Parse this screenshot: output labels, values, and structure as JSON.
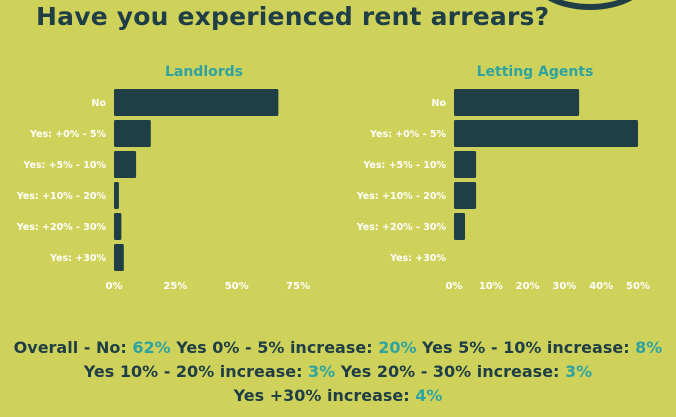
{
  "title": "Have you experienced rent arrears?",
  "chart_data": [
    {
      "type": "bar",
      "orientation": "horizontal",
      "title": "Landlords",
      "categories": [
        "No",
        "Yes: +0% - 5%",
        "Yes: +5% - 10%",
        "Yes: +10% - 20%",
        "Yes: +20% - 30%",
        "Yes: +30%"
      ],
      "values": [
        67,
        15,
        9,
        2,
        3,
        4
      ],
      "xlim": [
        0,
        75
      ],
      "xticks": [
        0,
        25,
        50,
        75
      ],
      "tick_labels": [
        "0%",
        "25%",
        "50%",
        "75%"
      ],
      "color": "#1f3e45"
    },
    {
      "type": "bar",
      "orientation": "horizontal",
      "title": "Letting Agents",
      "categories": [
        "No",
        "Yes: +0% - 5%",
        "Yes: +5% - 10%",
        "Yes: +10% - 20%",
        "Yes: +20% - 30%",
        "Yes: +30%"
      ],
      "values": [
        34,
        50,
        6,
        6,
        3,
        0
      ],
      "xlim": [
        0,
        50
      ],
      "xticks": [
        0,
        10,
        20,
        30,
        40,
        50
      ],
      "tick_labels": [
        "0%",
        "10%",
        "20%",
        "30%",
        "40%",
        "50%"
      ],
      "color": "#1f3e45"
    }
  ],
  "summary": {
    "line1": [
      {
        "text": "Overall - No: ",
        "pct": "62%"
      },
      {
        "text": "  Yes 0% - 5% increase: ",
        "pct": "20%"
      },
      {
        "text": "  Yes 5% - 10%  increase: ",
        "pct": "8%"
      }
    ],
    "line2": [
      {
        "text": "Yes 10% - 20% increase: ",
        "pct": "3%"
      },
      {
        "text": "  Yes 20% - 30%  increase: ",
        "pct": "3%"
      }
    ],
    "line3": [
      {
        "text": "Yes +30% increase: ",
        "pct": "4%"
      }
    ]
  },
  "colors": {
    "background": "#cfd25a",
    "bar": "#1f3e45",
    "accent": "#2ea3a0",
    "label": "#ffffff"
  }
}
